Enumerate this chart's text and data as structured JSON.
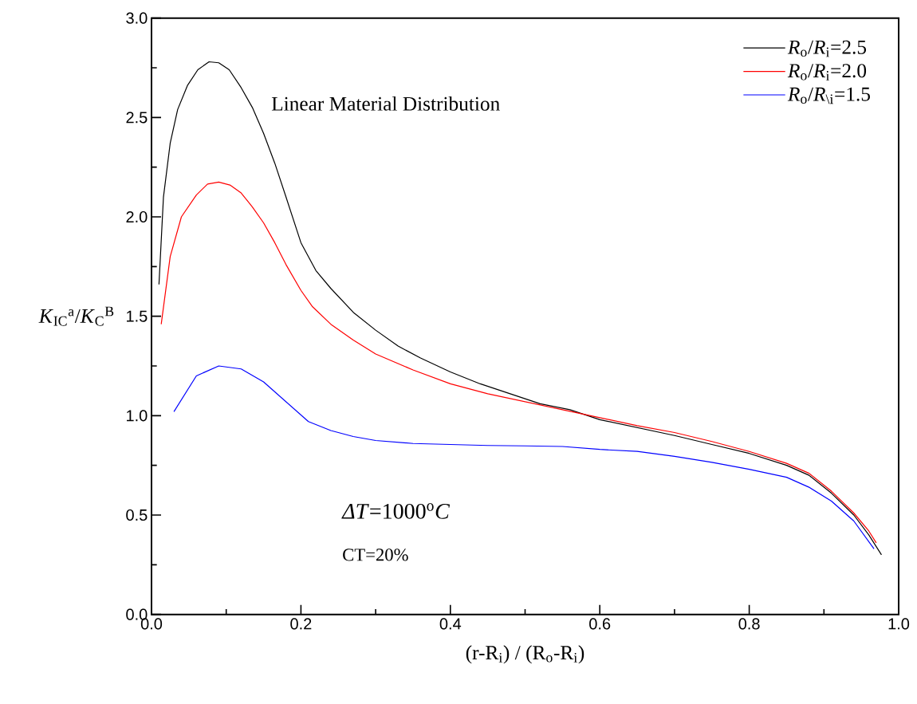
{
  "chart_data": {
    "type": "line",
    "xlabel": "(r-R$_{i}$) / (R$_{o}$-R$_{i}$)",
    "ylabel": "*K*$_{IC}$$^{a}$/*K*$_{C}$$^{B}$",
    "annotations": [
      "Linear Material Distribution",
      "*ΔT*=1000$^{o}$*C*",
      "CT=20%"
    ],
    "xlim": [
      0,
      1.0
    ],
    "ylim": [
      0,
      3.0
    ],
    "xticks": [
      {
        "value": 0,
        "label": "0.0"
      },
      0.2,
      0.4,
      0.6,
      0.8,
      {
        "value": 1,
        "label": "1.0"
      }
    ],
    "yticks": [
      {
        "value": 0,
        "label": "0.0"
      },
      0.5,
      {
        "value": 1,
        "label": "1.0"
      },
      1.5,
      {
        "value": 2,
        "label": "2.0"
      },
      2.5,
      {
        "value": 3,
        "label": "3.0"
      }
    ],
    "grid": false,
    "legend": "top right",
    "marker": "none",
    "line_style": "solid",
    "series": [
      {
        "name": "*R*$_{o}$/*R*$_{i}$=2.5",
        "color": "#000000",
        "x": [
          0.01,
          0.016,
          0.025,
          0.035,
          0.048,
          0.062,
          0.077,
          0.09,
          0.104,
          0.12,
          0.135,
          0.15,
          0.165,
          0.18,
          0.2,
          0.22,
          0.24,
          0.27,
          0.3,
          0.33,
          0.36,
          0.4,
          0.44,
          0.48,
          0.52,
          0.56,
          0.6,
          0.65,
          0.7,
          0.75,
          0.8,
          0.85,
          0.88,
          0.91,
          0.94,
          0.96,
          0.977
        ],
        "values": [
          1.66,
          2.1,
          2.37,
          2.54,
          2.66,
          2.74,
          2.78,
          2.775,
          2.74,
          2.65,
          2.55,
          2.42,
          2.27,
          2.1,
          1.87,
          1.73,
          1.64,
          1.52,
          1.43,
          1.35,
          1.29,
          1.22,
          1.16,
          1.11,
          1.06,
          1.03,
          0.98,
          0.94,
          0.9,
          0.855,
          0.81,
          0.75,
          0.7,
          0.61,
          0.5,
          0.4,
          0.3
        ]
      },
      {
        "name": "*R*$_{o}$/*R*$_{i}$=2.0",
        "color": "#ff0000",
        "x": [
          0.013,
          0.025,
          0.04,
          0.06,
          0.075,
          0.09,
          0.105,
          0.12,
          0.135,
          0.15,
          0.165,
          0.18,
          0.2,
          0.215,
          0.24,
          0.27,
          0.3,
          0.35,
          0.4,
          0.45,
          0.5,
          0.55,
          0.6,
          0.65,
          0.7,
          0.75,
          0.8,
          0.85,
          0.88,
          0.91,
          0.94,
          0.96,
          0.97
        ],
        "values": [
          1.46,
          1.8,
          2.0,
          2.11,
          2.165,
          2.175,
          2.16,
          2.12,
          2.05,
          1.97,
          1.87,
          1.76,
          1.63,
          1.55,
          1.46,
          1.38,
          1.31,
          1.23,
          1.16,
          1.11,
          1.07,
          1.03,
          0.99,
          0.95,
          0.915,
          0.87,
          0.82,
          0.76,
          0.71,
          0.62,
          0.51,
          0.42,
          0.36
        ]
      },
      {
        "name": "*R*$_{o}$/*R*$_{\\i}$=1.5",
        "color": "#0000ff",
        "x": [
          0.03,
          0.06,
          0.09,
          0.12,
          0.15,
          0.18,
          0.21,
          0.24,
          0.27,
          0.3,
          0.35,
          0.4,
          0.45,
          0.5,
          0.55,
          0.6,
          0.65,
          0.7,
          0.75,
          0.8,
          0.85,
          0.88,
          0.91,
          0.94,
          0.967
        ],
        "values": [
          1.02,
          1.2,
          1.25,
          1.235,
          1.17,
          1.07,
          0.97,
          0.925,
          0.895,
          0.875,
          0.86,
          0.855,
          0.85,
          0.848,
          0.845,
          0.83,
          0.82,
          0.795,
          0.765,
          0.73,
          0.69,
          0.64,
          0.57,
          0.47,
          0.33
        ]
      }
    ]
  }
}
